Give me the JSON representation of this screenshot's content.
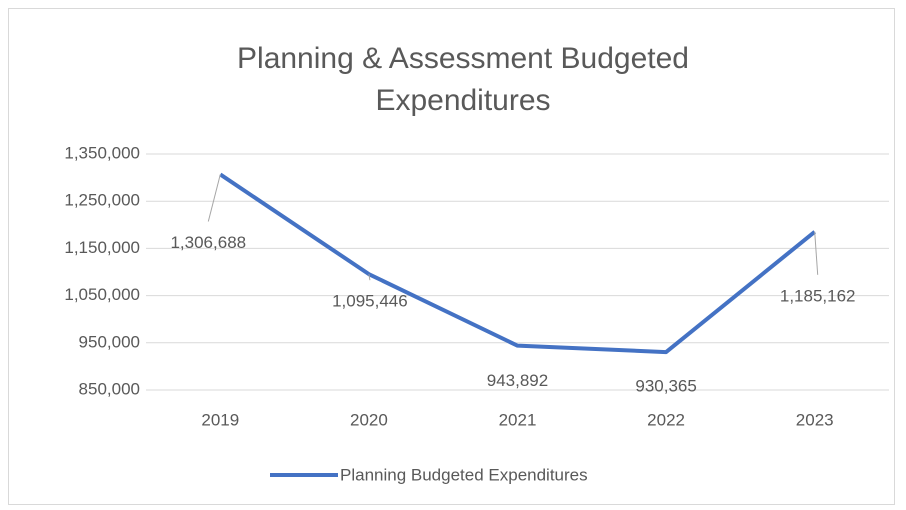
{
  "chart_data": {
    "type": "line",
    "title": [
      "Planning & Assessment Budgeted",
      "Expenditures"
    ],
    "categories": [
      "2019",
      "2020",
      "2021",
      "2022",
      "2023"
    ],
    "series": [
      {
        "name": "Planning Budgeted Expenditures",
        "color": "#4472c4",
        "values": [
          1306688,
          1095446,
          943892,
          930365,
          1185162
        ],
        "value_labels": [
          "1,306,688",
          "1,095,446",
          "943,892",
          "930,365",
          "1,185,162"
        ]
      }
    ],
    "ylim": [
      850000,
      1350000
    ],
    "yticks": [
      {
        "value": 850000,
        "label": "850,000"
      },
      {
        "value": 950000,
        "label": "950,000"
      },
      {
        "value": 1050000,
        "label": "1,050,000"
      },
      {
        "value": 1150000,
        "label": "1,150,000"
      },
      {
        "value": 1250000,
        "label": "1,250,000"
      },
      {
        "value": 1350000,
        "label": "1,350,000"
      }
    ],
    "grid": true,
    "legend": "bottom"
  }
}
